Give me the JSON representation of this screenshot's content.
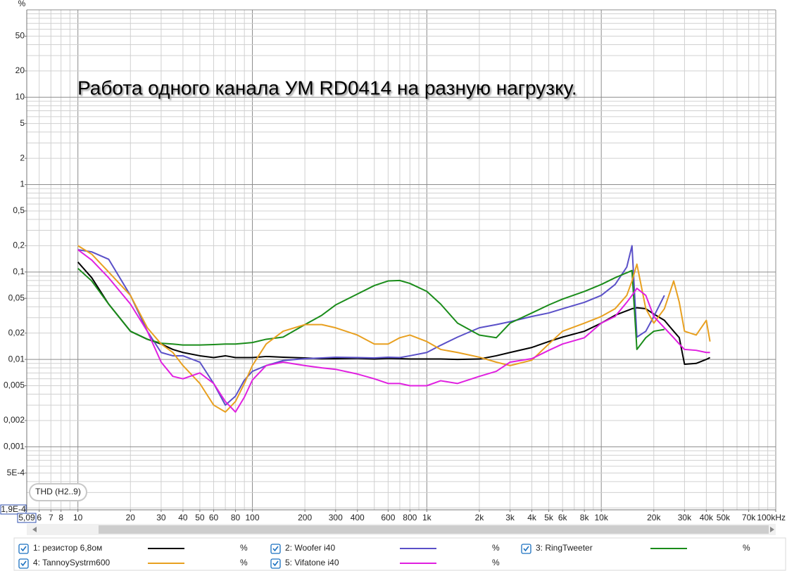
{
  "chart_data": {
    "type": "line",
    "title": "Работа одного канала УМ RD0414 на разную нагрузку.",
    "annotation": "THD (H2..9)",
    "ylabel": "%",
    "xscale": "log",
    "yscale": "log",
    "grid": true,
    "xlim": [
      5.09,
      100000
    ],
    "ylim": [
      0.00019,
      100
    ],
    "xticks": [
      {
        "value": 5.09,
        "label": "5,09"
      },
      6,
      7,
      8,
      10,
      20,
      30,
      40,
      50,
      60,
      80,
      100,
      200,
      300,
      400,
      600,
      800,
      {
        "value": 1000,
        "label": "1k"
      },
      {
        "value": 2000,
        "label": "2k"
      },
      {
        "value": 3000,
        "label": "3k"
      },
      {
        "value": 4000,
        "label": "4k"
      },
      {
        "value": 5000,
        "label": "5k"
      },
      {
        "value": 6000,
        "label": "6k"
      },
      {
        "value": 8000,
        "label": "8k"
      },
      {
        "value": 10000,
        "label": "10k"
      },
      {
        "value": 20000,
        "label": "20k"
      },
      {
        "value": 30000,
        "label": "30k"
      },
      {
        "value": 40000,
        "label": "40k"
      },
      {
        "value": 50000,
        "label": "50k"
      },
      {
        "value": 70000,
        "label": "70k"
      },
      {
        "value": 100000,
        "label": "100kHz"
      }
    ],
    "yticks": [
      {
        "value": 0.00019,
        "label": "1,9E-4"
      },
      {
        "value": 0.0005,
        "label": "5E-4"
      },
      {
        "value": 0.001,
        "label": "0,001"
      },
      {
        "value": 0.002,
        "label": "0,002"
      },
      {
        "value": 0.005,
        "label": "0,005"
      },
      {
        "value": 0.01,
        "label": "0,01"
      },
      {
        "value": 0.02,
        "label": "0,02"
      },
      {
        "value": 0.05,
        "label": "0,05"
      },
      {
        "value": 0.1,
        "label": "0,1"
      },
      {
        "value": 0.2,
        "label": "0,2"
      },
      {
        "value": 0.5,
        "label": "0,5"
      },
      1,
      2,
      5,
      10,
      20,
      50
    ],
    "xgrid": [
      6,
      7,
      8,
      9,
      10,
      20,
      30,
      40,
      50,
      60,
      70,
      80,
      90,
      100,
      200,
      300,
      400,
      500,
      600,
      700,
      800,
      900,
      1000,
      2000,
      3000,
      4000,
      5000,
      6000,
      7000,
      8000,
      9000,
      10000,
      20000,
      30000,
      40000,
      50000,
      60000,
      70000,
      80000,
      90000,
      100000
    ],
    "ygrid": [
      0.0002,
      0.0003,
      0.0004,
      0.0005,
      0.0006,
      0.0007,
      0.0008,
      0.0009,
      0.001,
      0.002,
      0.003,
      0.004,
      0.005,
      0.006,
      0.007,
      0.008,
      0.009,
      0.01,
      0.02,
      0.03,
      0.04,
      0.05,
      0.06,
      0.07,
      0.08,
      0.09,
      0.1,
      0.2,
      0.3,
      0.4,
      0.5,
      0.6,
      0.7,
      0.8,
      0.9,
      1,
      2,
      3,
      4,
      5,
      6,
      7,
      8,
      9,
      10,
      20,
      30,
      40,
      50,
      60,
      70,
      80,
      90,
      100
    ],
    "x": [
      10,
      12,
      15,
      20,
      25,
      30,
      35,
      40,
      50,
      60,
      70,
      80,
      90,
      100,
      120,
      150,
      200,
      250,
      300,
      400,
      500,
      600,
      700,
      800,
      1000,
      1200,
      1500,
      2000,
      2500,
      3000,
      4000,
      5000,
      6000,
      8000,
      10000,
      12000,
      14000,
      15000,
      16000,
      18000,
      20000,
      23000,
      26000,
      28000,
      30000,
      35000,
      40000,
      42000
    ],
    "series": [
      {
        "name": "1: резистор 6,8ом",
        "unit": "%",
        "color": "#000000",
        "values": [
          0.13,
          0.086,
          0.043,
          0.021,
          0.017,
          0.015,
          0.013,
          0.012,
          0.011,
          0.0105,
          0.011,
          0.0105,
          0.0105,
          0.0105,
          0.0108,
          0.0106,
          0.0104,
          0.0102,
          0.0102,
          0.0103,
          0.0101,
          0.0103,
          0.0102,
          0.0101,
          0.0101,
          0.0101,
          0.01,
          0.0101,
          0.011,
          0.012,
          0.0137,
          0.016,
          0.018,
          0.021,
          0.026,
          0.032,
          0.036,
          0.038,
          0.039,
          0.038,
          0.033,
          0.028,
          0.021,
          0.0177,
          0.0088,
          0.009,
          0.01,
          0.0105
        ]
      },
      {
        "name": "2: Woofer i40",
        "unit": "%",
        "color": "#5a50c8",
        "values": [
          0.18,
          0.17,
          0.14,
          0.054,
          0.021,
          0.012,
          0.011,
          0.011,
          0.0093,
          0.0053,
          0.003,
          0.0038,
          0.0058,
          0.0073,
          0.0085,
          0.0097,
          0.0102,
          0.0104,
          0.0106,
          0.0105,
          0.0104,
          0.0106,
          0.0105,
          0.011,
          0.012,
          0.0145,
          0.018,
          0.023,
          0.025,
          0.027,
          0.031,
          0.034,
          0.038,
          0.045,
          0.054,
          0.072,
          0.114,
          0.2,
          0.018,
          0.021,
          0.031,
          0.054,
          null,
          null,
          null,
          null,
          null,
          null
        ]
      },
      {
        "name": "3: RingTweeter",
        "unit": "%",
        "color": "#1a8c1a",
        "values": [
          0.11,
          0.079,
          0.043,
          0.021,
          0.017,
          0.0153,
          0.015,
          0.0146,
          0.0146,
          0.0148,
          0.015,
          0.015,
          0.0153,
          0.0156,
          0.017,
          0.018,
          0.025,
          0.032,
          0.042,
          0.056,
          0.07,
          0.079,
          0.08,
          0.074,
          0.06,
          0.043,
          0.026,
          0.019,
          0.0177,
          0.026,
          0.034,
          0.042,
          0.049,
          0.06,
          0.072,
          0.086,
          0.098,
          0.104,
          0.013,
          0.0177,
          0.021,
          0.022,
          null,
          null,
          null,
          null,
          null,
          null
        ]
      },
      {
        "name": "4: TannoySystrm600",
        "unit": "%",
        "color": "#e8a020",
        "values": [
          0.2,
          0.16,
          0.1,
          0.054,
          0.023,
          0.015,
          0.012,
          0.0085,
          0.0053,
          0.003,
          0.0025,
          0.0033,
          0.0053,
          0.0085,
          0.015,
          0.021,
          0.025,
          0.025,
          0.023,
          0.019,
          0.015,
          0.015,
          0.0177,
          0.019,
          0.016,
          0.013,
          0.012,
          0.0106,
          0.0093,
          0.0085,
          0.0098,
          0.015,
          0.021,
          0.026,
          0.031,
          0.038,
          0.054,
          0.079,
          0.123,
          0.038,
          0.026,
          0.038,
          0.079,
          0.045,
          0.021,
          0.019,
          0.028,
          0.016
        ]
      },
      {
        "name": "5: Vifatone i40",
        "unit": "%",
        "color": "#e020e0",
        "values": [
          0.18,
          0.137,
          0.086,
          0.043,
          0.021,
          0.0093,
          0.0064,
          0.006,
          0.007,
          0.0053,
          0.0033,
          0.0025,
          0.0037,
          0.0058,
          0.0085,
          0.0093,
          0.0085,
          0.008,
          0.0077,
          0.0068,
          0.006,
          0.0053,
          0.0053,
          0.005,
          0.005,
          0.0057,
          0.0053,
          0.0064,
          0.0073,
          0.0093,
          0.0102,
          0.0127,
          0.015,
          0.0177,
          0.026,
          0.031,
          0.045,
          0.054,
          0.065,
          0.054,
          0.031,
          0.023,
          0.0177,
          0.015,
          0.013,
          0.0127,
          0.012,
          0.012
        ]
      }
    ]
  }
}
